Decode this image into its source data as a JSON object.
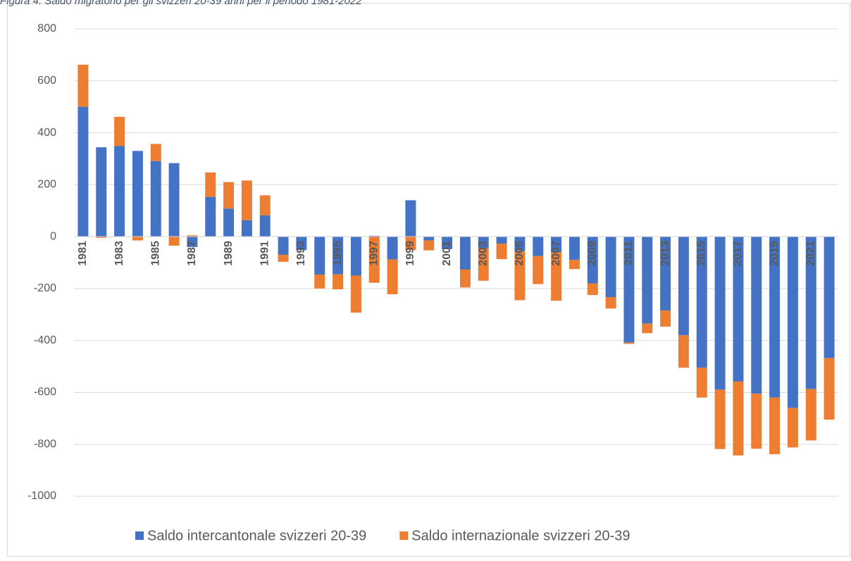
{
  "chart_data": {
    "type": "bar",
    "stacked": true,
    "title": "Figura 4: Saldo migratorio per gli svizzeri 20-39 anni per il periodo 1981-2022",
    "categories": [
      "1981",
      null,
      "1983",
      null,
      "1985",
      null,
      "1987",
      null,
      "1989",
      null,
      "1991",
      null,
      "1993",
      null,
      "1995",
      null,
      "1997",
      null,
      "1999",
      null,
      "2001",
      null,
      "2003",
      null,
      "2005",
      null,
      "2007",
      null,
      "2009",
      null,
      "2011",
      null,
      "2013",
      null,
      "2015",
      null,
      "2017",
      null,
      "2019",
      null,
      "2021",
      null
    ],
    "series": [
      {
        "name": "Saldo intercantonale svizzeri 20-39",
        "color": "#4472c4",
        "values": [
          500,
          344,
          349,
          330,
          291,
          283,
          -40,
          153,
          108,
          63,
          82,
          -70,
          -52,
          -146,
          -145,
          -150,
          3,
          -88,
          140,
          -15,
          -48,
          -127,
          -45,
          -27,
          -55,
          -75,
          -60,
          -90,
          -180,
          -233,
          -408,
          -335,
          -285,
          -380,
          -505,
          -590,
          -558,
          -605,
          -620,
          -660,
          -587,
          -468
        ]
      },
      {
        "name": "Saldo internazionale svizzeri 20-39",
        "color": "#ed7d31",
        "values": [
          162,
          -5,
          112,
          -15,
          66,
          -35,
          5,
          94,
          102,
          153,
          77,
          -27,
          0,
          -54,
          -58,
          -143,
          -178,
          -134,
          -52,
          -38,
          0,
          -69,
          -125,
          -60,
          -190,
          -108,
          -187,
          -35,
          -45,
          -44,
          -5,
          -37,
          -62,
          -125,
          -115,
          -228,
          -285,
          -212,
          -218,
          -152,
          -198,
          -237
        ]
      }
    ],
    "ylim": [
      -1000,
      800
    ],
    "yticks": [
      800,
      600,
      400,
      200,
      0,
      -200,
      -400,
      -600,
      -800,
      -1000
    ],
    "grid": true
  }
}
